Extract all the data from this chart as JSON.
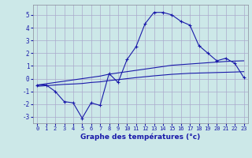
{
  "xlabel": "Graphe des températures (°c)",
  "background_color": "#cce8e8",
  "grid_color": "#aaaacc",
  "line_color": "#1a1aaa",
  "hours": [
    0,
    1,
    2,
    3,
    4,
    5,
    6,
    7,
    8,
    9,
    10,
    11,
    12,
    13,
    14,
    15,
    16,
    17,
    18,
    19,
    20,
    21,
    22,
    23
  ],
  "temp_main": [
    -0.5,
    -0.5,
    -1.0,
    -1.8,
    -1.9,
    -3.1,
    -1.9,
    -2.1,
    0.4,
    -0.3,
    1.5,
    2.5,
    4.3,
    5.2,
    5.2,
    5.0,
    4.5,
    4.2,
    2.6,
    2.0,
    1.4,
    1.6,
    1.2,
    0.1
  ],
  "temp_line2": [
    -0.5,
    -0.4,
    -0.3,
    -0.2,
    -0.1,
    0.0,
    0.1,
    0.2,
    0.35,
    0.45,
    0.55,
    0.65,
    0.75,
    0.85,
    0.95,
    1.05,
    1.1,
    1.15,
    1.2,
    1.25,
    1.3,
    1.35,
    1.38,
    1.4
  ],
  "temp_line3": [
    -0.6,
    -0.55,
    -0.5,
    -0.45,
    -0.42,
    -0.38,
    -0.3,
    -0.25,
    -0.15,
    -0.08,
    0.0,
    0.08,
    0.15,
    0.22,
    0.28,
    0.34,
    0.38,
    0.42,
    0.44,
    0.46,
    0.48,
    0.5,
    0.52,
    0.55
  ],
  "ylim": [
    -3.5,
    5.8
  ],
  "xlim": [
    -0.5,
    23.5
  ],
  "yticks": [
    -3,
    -2,
    -1,
    0,
    1,
    2,
    3,
    4,
    5
  ],
  "xticks": [
    0,
    1,
    2,
    3,
    4,
    5,
    6,
    7,
    8,
    9,
    10,
    11,
    12,
    13,
    14,
    15,
    16,
    17,
    18,
    19,
    20,
    21,
    22,
    23
  ]
}
